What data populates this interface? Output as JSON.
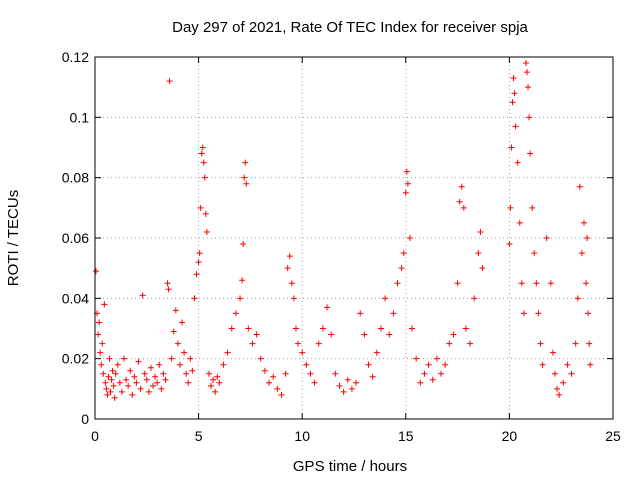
{
  "chart_data": {
    "type": "scatter",
    "title": "Day 297 of 2021, Rate Of TEC Index for receiver spja",
    "xlabel": "GPS time / hours",
    "ylabel": "ROTI / TECUs",
    "xlim": [
      0,
      25
    ],
    "ylim": [
      0,
      0.12
    ],
    "xticks": [
      0,
      5,
      10,
      15,
      20,
      25
    ],
    "xtick_labels": [
      "0",
      "5",
      "10",
      "15",
      "20",
      "25"
    ],
    "yticks": [
      0,
      0.02,
      0.04,
      0.06,
      0.08,
      0.1,
      0.12
    ],
    "ytick_labels": [
      "0",
      "0.02",
      "0.04",
      "0.06",
      "0.08",
      "0.1",
      "0.12"
    ],
    "grid": true,
    "marker": "plus",
    "color": "#ff0000",
    "series": [
      {
        "points": [
          [
            0.05,
            0.049
          ],
          [
            0.1,
            0.035
          ],
          [
            0.15,
            0.028
          ],
          [
            0.2,
            0.032
          ],
          [
            0.25,
            0.022
          ],
          [
            0.3,
            0.018
          ],
          [
            0.35,
            0.025
          ],
          [
            0.4,
            0.015
          ],
          [
            0.45,
            0.038
          ],
          [
            0.5,
            0.012
          ],
          [
            0.55,
            0.01
          ],
          [
            0.6,
            0.008
          ],
          [
            0.65,
            0.014
          ],
          [
            0.7,
            0.02
          ],
          [
            0.75,
            0.009
          ],
          [
            0.8,
            0.013
          ],
          [
            0.85,
            0.016
          ],
          [
            0.9,
            0.011
          ],
          [
            0.95,
            0.007
          ],
          [
            1.0,
            0.015
          ],
          [
            1.1,
            0.018
          ],
          [
            1.2,
            0.012
          ],
          [
            1.3,
            0.009
          ],
          [
            1.4,
            0.02
          ],
          [
            1.5,
            0.013
          ],
          [
            1.6,
            0.011
          ],
          [
            1.7,
            0.016
          ],
          [
            1.8,
            0.008
          ],
          [
            1.9,
            0.014
          ],
          [
            2.0,
            0.012
          ],
          [
            2.1,
            0.019
          ],
          [
            2.2,
            0.01
          ],
          [
            2.3,
            0.041
          ],
          [
            2.4,
            0.015
          ],
          [
            2.5,
            0.013
          ],
          [
            2.6,
            0.009
          ],
          [
            2.7,
            0.017
          ],
          [
            2.8,
            0.011
          ],
          [
            2.9,
            0.014
          ],
          [
            3.0,
            0.012
          ],
          [
            3.1,
            0.018
          ],
          [
            3.2,
            0.01
          ],
          [
            3.3,
            0.015
          ],
          [
            3.4,
            0.013
          ],
          [
            3.5,
            0.045
          ],
          [
            3.55,
            0.043
          ],
          [
            3.6,
            0.112
          ],
          [
            3.7,
            0.02
          ],
          [
            3.8,
            0.029
          ],
          [
            3.9,
            0.036
          ],
          [
            4.0,
            0.025
          ],
          [
            4.1,
            0.018
          ],
          [
            4.2,
            0.032
          ],
          [
            4.3,
            0.022
          ],
          [
            4.4,
            0.015
          ],
          [
            4.5,
            0.012
          ],
          [
            4.6,
            0.02
          ],
          [
            4.7,
            0.016
          ],
          [
            4.8,
            0.04
          ],
          [
            4.9,
            0.048
          ],
          [
            5.0,
            0.052
          ],
          [
            5.05,
            0.055
          ],
          [
            5.1,
            0.07
          ],
          [
            5.15,
            0.088
          ],
          [
            5.2,
            0.09
          ],
          [
            5.25,
            0.085
          ],
          [
            5.3,
            0.08
          ],
          [
            5.35,
            0.068
          ],
          [
            5.4,
            0.062
          ],
          [
            5.5,
            0.015
          ],
          [
            5.6,
            0.011
          ],
          [
            5.7,
            0.013
          ],
          [
            5.8,
            0.009
          ],
          [
            5.9,
            0.014
          ],
          [
            6.0,
            0.012
          ],
          [
            6.2,
            0.018
          ],
          [
            6.4,
            0.022
          ],
          [
            6.6,
            0.03
          ],
          [
            6.8,
            0.035
          ],
          [
            7.0,
            0.04
          ],
          [
            7.1,
            0.046
          ],
          [
            7.15,
            0.058
          ],
          [
            7.2,
            0.08
          ],
          [
            7.25,
            0.085
          ],
          [
            7.3,
            0.078
          ],
          [
            7.4,
            0.03
          ],
          [
            7.6,
            0.025
          ],
          [
            7.8,
            0.028
          ],
          [
            8.0,
            0.02
          ],
          [
            8.2,
            0.016
          ],
          [
            8.4,
            0.012
          ],
          [
            8.6,
            0.014
          ],
          [
            8.8,
            0.01
          ],
          [
            9.0,
            0.008
          ],
          [
            9.2,
            0.015
          ],
          [
            9.3,
            0.05
          ],
          [
            9.4,
            0.054
          ],
          [
            9.5,
            0.045
          ],
          [
            9.6,
            0.04
          ],
          [
            9.7,
            0.03
          ],
          [
            9.8,
            0.025
          ],
          [
            10.0,
            0.022
          ],
          [
            10.2,
            0.018
          ],
          [
            10.4,
            0.015
          ],
          [
            10.6,
            0.012
          ],
          [
            10.8,
            0.025
          ],
          [
            11.0,
            0.03
          ],
          [
            11.2,
            0.037
          ],
          [
            11.4,
            0.028
          ],
          [
            11.6,
            0.015
          ],
          [
            11.8,
            0.011
          ],
          [
            12.0,
            0.009
          ],
          [
            12.2,
            0.013
          ],
          [
            12.4,
            0.01
          ],
          [
            12.6,
            0.012
          ],
          [
            12.8,
            0.035
          ],
          [
            13.0,
            0.028
          ],
          [
            13.2,
            0.018
          ],
          [
            13.4,
            0.014
          ],
          [
            13.6,
            0.022
          ],
          [
            13.8,
            0.03
          ],
          [
            14.0,
            0.04
          ],
          [
            14.2,
            0.028
          ],
          [
            14.4,
            0.035
          ],
          [
            14.6,
            0.045
          ],
          [
            14.8,
            0.05
          ],
          [
            14.9,
            0.055
          ],
          [
            15.0,
            0.075
          ],
          [
            15.05,
            0.082
          ],
          [
            15.1,
            0.078
          ],
          [
            15.2,
            0.06
          ],
          [
            15.3,
            0.03
          ],
          [
            15.5,
            0.02
          ],
          [
            15.7,
            0.012
          ],
          [
            15.9,
            0.015
          ],
          [
            16.1,
            0.018
          ],
          [
            16.3,
            0.013
          ],
          [
            16.5,
            0.02
          ],
          [
            16.7,
            0.015
          ],
          [
            16.9,
            0.018
          ],
          [
            17.1,
            0.025
          ],
          [
            17.3,
            0.028
          ],
          [
            17.5,
            0.045
          ],
          [
            17.6,
            0.072
          ],
          [
            17.7,
            0.077
          ],
          [
            17.8,
            0.07
          ],
          [
            17.9,
            0.03
          ],
          [
            18.1,
            0.025
          ],
          [
            18.3,
            0.04
          ],
          [
            18.5,
            0.055
          ],
          [
            18.6,
            0.062
          ],
          [
            18.7,
            0.05
          ],
          [
            20.0,
            0.058
          ],
          [
            20.05,
            0.07
          ],
          [
            20.1,
            0.09
          ],
          [
            20.15,
            0.105
          ],
          [
            20.2,
            0.113
          ],
          [
            20.25,
            0.108
          ],
          [
            20.3,
            0.097
          ],
          [
            20.4,
            0.085
          ],
          [
            20.5,
            0.065
          ],
          [
            20.6,
            0.045
          ],
          [
            20.7,
            0.035
          ],
          [
            20.8,
            0.118
          ],
          [
            20.85,
            0.115
          ],
          [
            20.9,
            0.11
          ],
          [
            20.95,
            0.1
          ],
          [
            21.0,
            0.088
          ],
          [
            21.1,
            0.07
          ],
          [
            21.2,
            0.055
          ],
          [
            21.3,
            0.045
          ],
          [
            21.4,
            0.035
          ],
          [
            21.5,
            0.025
          ],
          [
            21.6,
            0.018
          ],
          [
            21.8,
            0.06
          ],
          [
            22.0,
            0.045
          ],
          [
            22.1,
            0.022
          ],
          [
            22.2,
            0.015
          ],
          [
            22.3,
            0.01
          ],
          [
            22.4,
            0.008
          ],
          [
            22.6,
            0.012
          ],
          [
            22.8,
            0.018
          ],
          [
            23.0,
            0.015
          ],
          [
            23.2,
            0.025
          ],
          [
            23.3,
            0.04
          ],
          [
            23.4,
            0.077
          ],
          [
            23.5,
            0.055
          ],
          [
            23.6,
            0.065
          ],
          [
            23.7,
            0.045
          ],
          [
            23.75,
            0.06
          ],
          [
            23.8,
            0.035
          ],
          [
            23.85,
            0.025
          ],
          [
            23.9,
            0.018
          ]
        ]
      }
    ]
  }
}
